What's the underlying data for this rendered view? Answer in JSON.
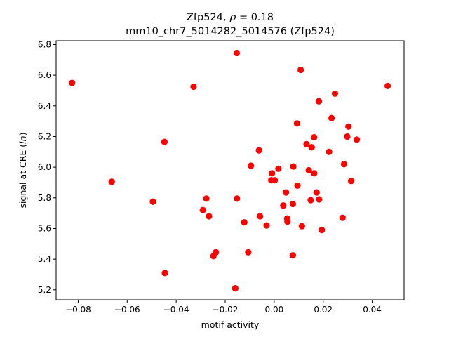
{
  "chart_data": {
    "type": "scatter",
    "title_prefix": "Zfp524, ",
    "title_rho": "ρ",
    "title_suffix": " = 0.18",
    "subtitle": "mm10_chr7_5014282_5014576 (Zfp524)",
    "xlabel": "motif activity",
    "ylabel_prefix": "signal at CRE (",
    "ylabel_italic": "ln",
    "ylabel_suffix": ")",
    "xlim": [
      -0.089,
      0.053
    ],
    "ylim": [
      5.135,
      6.825
    ],
    "xticks": [
      -0.08,
      -0.06,
      -0.04,
      -0.02,
      0.0,
      0.02,
      0.04
    ],
    "xtick_labels": [
      "−0.08",
      "−0.06",
      "−0.04",
      "−0.02",
      "0.00",
      "0.02",
      "0.04"
    ],
    "yticks": [
      5.2,
      5.4,
      5.6,
      5.8,
      6.0,
      6.2,
      6.4,
      6.6,
      6.8
    ],
    "ytick_labels": [
      "5.2",
      "5.4",
      "5.6",
      "5.8",
      "6.0",
      "6.2",
      "6.4",
      "6.6",
      "6.8"
    ],
    "grid": false,
    "marker_color": "#ff0000",
    "points": [
      {
        "x": -0.0825,
        "y": 6.55
      },
      {
        "x": -0.0663,
        "y": 5.905
      },
      {
        "x": -0.0495,
        "y": 5.775
      },
      {
        "x": -0.0448,
        "y": 6.165
      },
      {
        "x": -0.0446,
        "y": 5.31
      },
      {
        "x": -0.0329,
        "y": 6.525
      },
      {
        "x": -0.0291,
        "y": 5.72
      },
      {
        "x": -0.0277,
        "y": 5.795
      },
      {
        "x": -0.0266,
        "y": 5.68
      },
      {
        "x": -0.0248,
        "y": 5.42
      },
      {
        "x": -0.0238,
        "y": 5.445
      },
      {
        "x": -0.0159,
        "y": 5.21
      },
      {
        "x": -0.0153,
        "y": 6.745
      },
      {
        "x": -0.0152,
        "y": 5.795
      },
      {
        "x": -0.0122,
        "y": 5.64
      },
      {
        "x": -0.0106,
        "y": 5.445
      },
      {
        "x": -0.0095,
        "y": 6.01
      },
      {
        "x": -0.0062,
        "y": 6.11
      },
      {
        "x": -0.0058,
        "y": 5.68
      },
      {
        "x": -0.0031,
        "y": 5.62
      },
      {
        "x": -0.0012,
        "y": 5.915
      },
      {
        "x": -0.0009,
        "y": 5.96
      },
      {
        "x": 0.0002,
        "y": 5.915
      },
      {
        "x": 0.0017,
        "y": 5.99
      },
      {
        "x": 0.0037,
        "y": 5.75
      },
      {
        "x": 0.0048,
        "y": 5.835
      },
      {
        "x": 0.0053,
        "y": 5.665
      },
      {
        "x": 0.0054,
        "y": 5.645
      },
      {
        "x": 0.0076,
        "y": 5.425
      },
      {
        "x": 0.0076,
        "y": 5.76
      },
      {
        "x": 0.0078,
        "y": 6.005
      },
      {
        "x": 0.0093,
        "y": 6.285
      },
      {
        "x": 0.0095,
        "y": 5.88
      },
      {
        "x": 0.0108,
        "y": 6.635
      },
      {
        "x": 0.0113,
        "y": 5.615
      },
      {
        "x": 0.0132,
        "y": 6.15
      },
      {
        "x": 0.0141,
        "y": 5.98
      },
      {
        "x": 0.0149,
        "y": 5.785
      },
      {
        "x": 0.0153,
        "y": 6.13
      },
      {
        "x": 0.0163,
        "y": 6.195
      },
      {
        "x": 0.0163,
        "y": 5.96
      },
      {
        "x": 0.0173,
        "y": 5.835
      },
      {
        "x": 0.0182,
        "y": 6.43
      },
      {
        "x": 0.0183,
        "y": 5.79
      },
      {
        "x": 0.0194,
        "y": 5.59
      },
      {
        "x": 0.0224,
        "y": 6.1
      },
      {
        "x": 0.0234,
        "y": 6.32
      },
      {
        "x": 0.0248,
        "y": 6.48
      },
      {
        "x": 0.0279,
        "y": 5.67
      },
      {
        "x": 0.0285,
        "y": 6.02
      },
      {
        "x": 0.0298,
        "y": 6.2
      },
      {
        "x": 0.0303,
        "y": 6.265
      },
      {
        "x": 0.0314,
        "y": 5.91
      },
      {
        "x": 0.0337,
        "y": 6.18
      },
      {
        "x": 0.0463,
        "y": 6.53
      }
    ]
  }
}
